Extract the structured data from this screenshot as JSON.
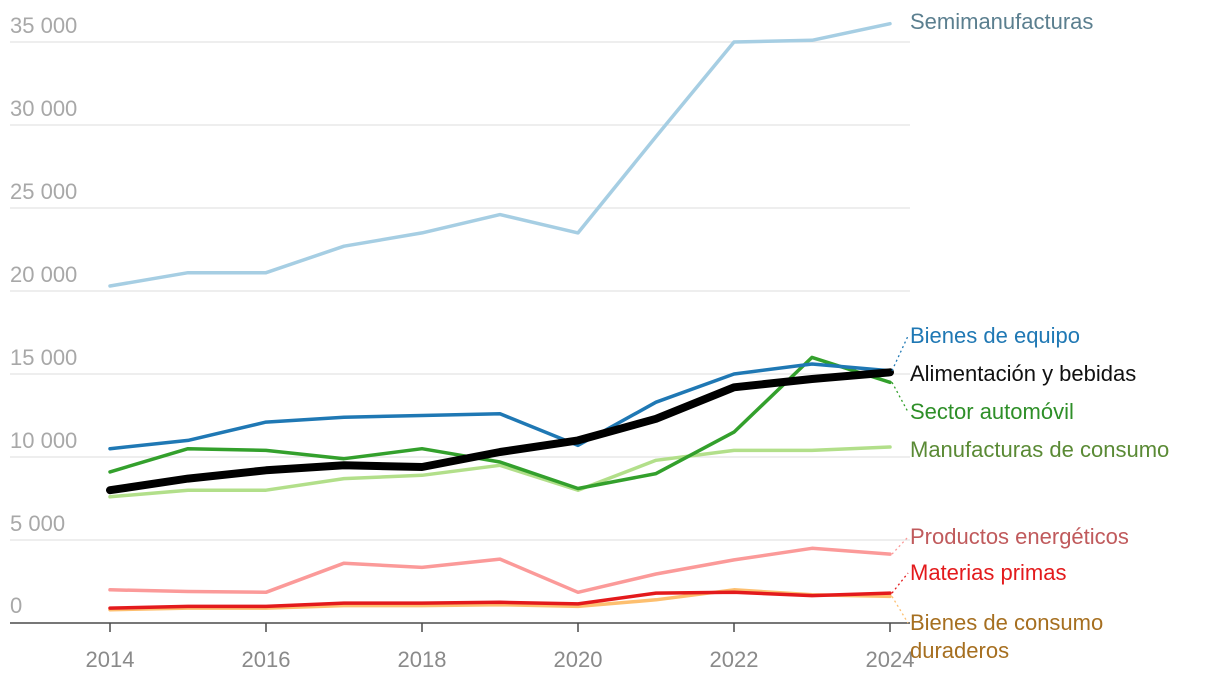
{
  "chart_data": {
    "type": "line",
    "title": "",
    "xlabel": "",
    "ylabel": "",
    "x": [
      2014,
      2015,
      2016,
      2017,
      2018,
      2019,
      2020,
      2021,
      2022,
      2023,
      2024
    ],
    "x_tick_labels": [
      "2014",
      "2016",
      "2018",
      "2020",
      "2022",
      "2024"
    ],
    "x_tick_values": [
      2014,
      2016,
      2018,
      2020,
      2022,
      2024
    ],
    "y_tick_labels": [
      "0",
      "5 000",
      "10 000",
      "15 000",
      "20 000",
      "25 000",
      "30 000",
      "35 000"
    ],
    "y_tick_values": [
      0,
      5000,
      10000,
      15000,
      20000,
      25000,
      30000,
      35000
    ],
    "xlim": [
      2014,
      2024
    ],
    "ylim": [
      0,
      35000
    ],
    "grid": true,
    "legend": "direct labels at right end of lines",
    "series": [
      {
        "name": "Semimanufacturas",
        "color": "#a6cee3",
        "label_color": "#5b7f8f",
        "emphasis": false,
        "values": [
          20300,
          21100,
          21100,
          22700,
          23500,
          24600,
          23500,
          29300,
          35000,
          35100,
          36100
        ]
      },
      {
        "name": "Bienes de equipo",
        "color": "#1f78b4",
        "label_color": "#1f78b4",
        "emphasis": false,
        "values": [
          10500,
          11000,
          12100,
          12400,
          12500,
          12600,
          10700,
          13300,
          15000,
          15600,
          15200
        ]
      },
      {
        "name": "Alimentación y bebidas",
        "color": "#000000",
        "label_color": "#111111",
        "emphasis": true,
        "values": [
          8000,
          8700,
          9200,
          9500,
          9400,
          10300,
          11000,
          12300,
          14200,
          14700,
          15100
        ]
      },
      {
        "name": "Sector automóvil",
        "color": "#33a02c",
        "label_color": "#2e8f28",
        "emphasis": false,
        "values": [
          9100,
          10500,
          10400,
          9900,
          10500,
          9700,
          8100,
          9000,
          11500,
          16000,
          14500
        ]
      },
      {
        "name": "Manufacturas de consumo",
        "color": "#b2df8a",
        "label_color": "#5a8a35",
        "emphasis": false,
        "values": [
          7600,
          8000,
          8000,
          8700,
          8900,
          9500,
          8000,
          9800,
          10400,
          10400,
          10600
        ]
      },
      {
        "name": "Productos energéticos",
        "color": "#fb9a99",
        "label_color": "#c05a5c",
        "emphasis": false,
        "values": [
          2000,
          1900,
          1850,
          3600,
          3350,
          3850,
          1850,
          2950,
          3800,
          4500,
          4150
        ]
      },
      {
        "name": "Materias primas",
        "color": "#e31a1c",
        "label_color": "#e31a1c",
        "emphasis": false,
        "values": [
          900,
          1000,
          1000,
          1200,
          1200,
          1250,
          1150,
          1800,
          1850,
          1650,
          1800
        ]
      },
      {
        "name": "Bienes de consumo duraderos",
        "color": "#fdbf6f",
        "label_color": "#a66f20",
        "emphasis": false,
        "values": [
          800,
          900,
          900,
          1050,
          1050,
          1100,
          1000,
          1400,
          2000,
          1700,
          1600
        ]
      }
    ]
  }
}
